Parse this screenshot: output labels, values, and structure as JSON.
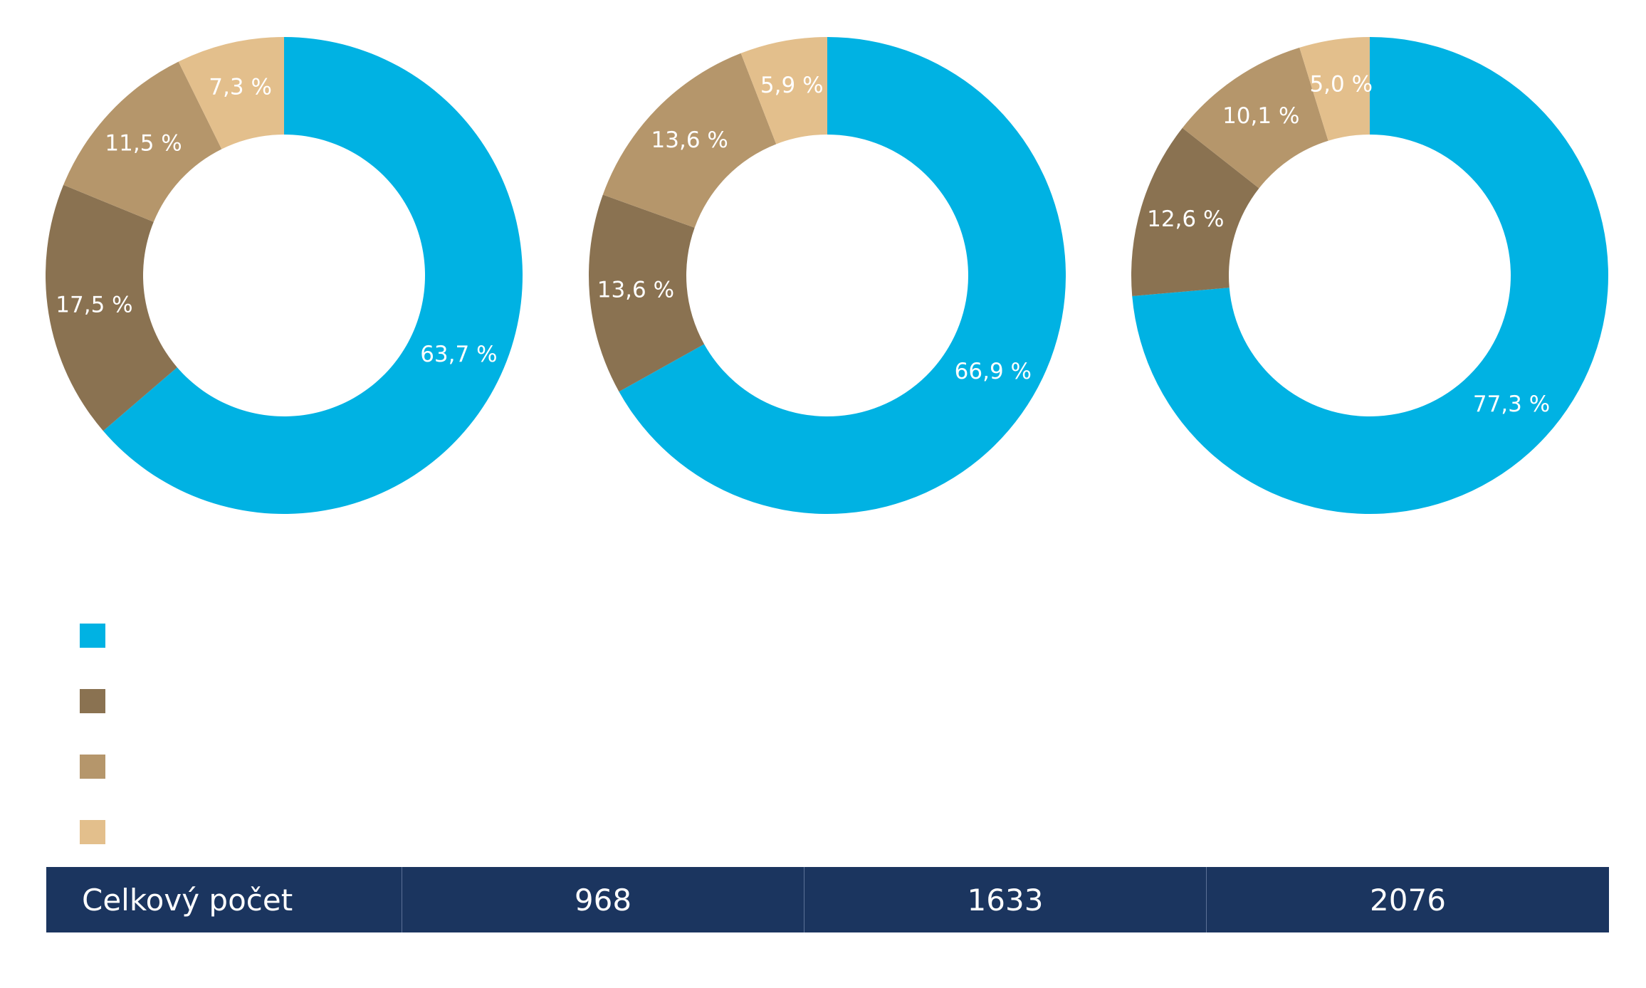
{
  "colors": {
    "series": [
      "#00b2e3",
      "#8a7251",
      "#b5966b",
      "#e3bf8c"
    ],
    "table_background": "#1b355f",
    "label_text": "#ffffff"
  },
  "chart_data": [
    {
      "type": "pie",
      "donut": true,
      "values": [
        63.7,
        17.5,
        11.5,
        7.3
      ],
      "labels": [
        "63,7 %",
        "17,5 %",
        "11,5 %",
        "7,3 %"
      ]
    },
    {
      "type": "pie",
      "donut": true,
      "values": [
        66.9,
        13.6,
        13.6,
        5.9
      ],
      "labels": [
        "66,9 %",
        "13,6 %",
        "13,6 %",
        "5,9 %"
      ]
    },
    {
      "type": "pie",
      "donut": true,
      "values": [
        77.3,
        12.6,
        10.1,
        5.0
      ],
      "labels": [
        "77,3 %",
        "12,6 %",
        "10,1 %",
        "5,0 %"
      ]
    }
  ],
  "legend": {
    "items": [
      {
        "label": "",
        "color": "#00b2e3"
      },
      {
        "label": "",
        "color": "#8a7251"
      },
      {
        "label": "",
        "color": "#b5966b"
      },
      {
        "label": "",
        "color": "#e3bf8c"
      }
    ]
  },
  "totals": {
    "label": "Celkový počet",
    "values": [
      "968",
      "1633",
      "2076"
    ]
  }
}
